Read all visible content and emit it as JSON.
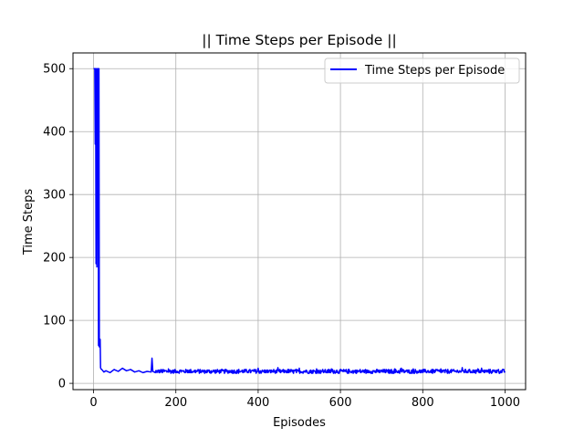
{
  "chart_data": {
    "type": "line",
    "title": "|| Time Steps per Episode ||",
    "xlabel": "Episodes",
    "ylabel": "Time Steps",
    "xlim": [
      -50,
      1050
    ],
    "ylim": [
      -10,
      525
    ],
    "xticks": [
      0,
      200,
      400,
      600,
      800,
      1000
    ],
    "yticks": [
      0,
      100,
      200,
      300,
      400,
      500
    ],
    "xtick_labels": [
      "0",
      "200",
      "400",
      "600",
      "800",
      "1000"
    ],
    "ytick_labels": [
      "0",
      "100",
      "200",
      "300",
      "400",
      "500"
    ],
    "grid": true,
    "legend_position": "top-right",
    "series": [
      {
        "name": "Time Steps per Episode",
        "color": "#0000ff",
        "key_points": [
          [
            0,
            500
          ],
          [
            1,
            500
          ],
          [
            2,
            500
          ],
          [
            3,
            500
          ],
          [
            4,
            380
          ],
          [
            5,
            500
          ],
          [
            6,
            190
          ],
          [
            7,
            500
          ],
          [
            8,
            185
          ],
          [
            9,
            500
          ],
          [
            10,
            420
          ],
          [
            11,
            500
          ],
          [
            12,
            60
          ],
          [
            13,
            500
          ],
          [
            14,
            58
          ],
          [
            15,
            65
          ],
          [
            16,
            70
          ],
          [
            17,
            25
          ],
          [
            18,
            23
          ],
          [
            20,
            22
          ],
          [
            25,
            18
          ],
          [
            30,
            20
          ],
          [
            40,
            17
          ],
          [
            50,
            22
          ],
          [
            60,
            19
          ],
          [
            70,
            24
          ],
          [
            80,
            20
          ],
          [
            90,
            22
          ],
          [
            100,
            18
          ],
          [
            110,
            20
          ],
          [
            120,
            17
          ],
          [
            130,
            19
          ],
          [
            140,
            18
          ],
          [
            142,
            40
          ],
          [
            144,
            19
          ],
          [
            150,
            17
          ]
        ],
        "tail": {
          "x_start": 151,
          "x_end": 1000,
          "baseline": 19,
          "jitter": 3
        }
      }
    ]
  }
}
